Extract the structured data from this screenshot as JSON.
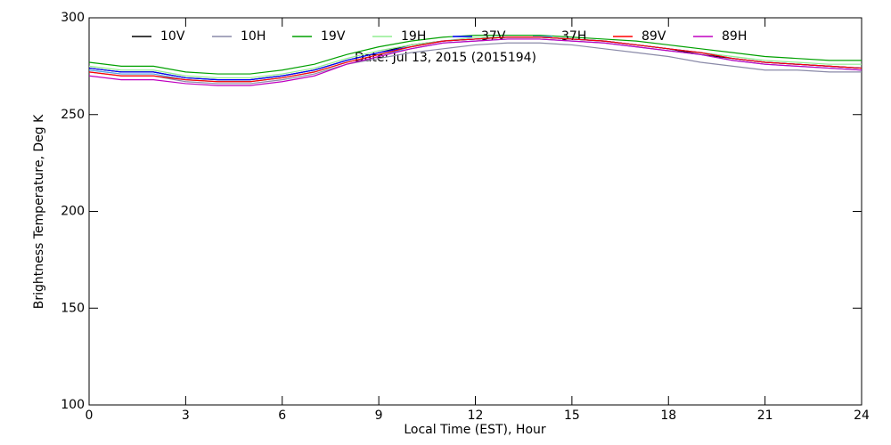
{
  "chart_data": {
    "type": "line",
    "annotation": "Date: Jul 13, 2015 (2015194)",
    "x_label": "Local Time (EST), Hour",
    "y_label": "Brightness Temperature, Deg K",
    "x": [
      0,
      1,
      2,
      3,
      4,
      5,
      6,
      7,
      8,
      9,
      10,
      11,
      12,
      13,
      14,
      15,
      16,
      17,
      18,
      19,
      20,
      21,
      22,
      23,
      24
    ],
    "xlim": [
      0,
      24
    ],
    "xticks": [
      0,
      3,
      6,
      9,
      12,
      15,
      18,
      21,
      24
    ],
    "ylim": [
      100,
      300
    ],
    "yticks": [
      100,
      150,
      200,
      250,
      300
    ],
    "series": [
      {
        "name": "10V",
        "color": "#000000",
        "values": [
          274,
          272,
          272,
          269,
          268,
          268,
          270,
          273,
          278,
          282,
          286,
          288,
          289,
          290,
          290,
          289,
          288,
          286,
          284,
          281,
          279,
          277,
          276,
          275,
          274
        ]
      },
      {
        "name": "10H",
        "color": "#8a8aa8",
        "values": [
          272,
          270,
          270,
          267,
          266,
          266,
          268,
          271,
          276,
          279,
          282,
          284,
          286,
          287,
          287,
          286,
          284,
          282,
          280,
          277,
          275,
          273,
          273,
          272,
          272
        ]
      },
      {
        "name": "19V",
        "color": "#00a000",
        "values": [
          277,
          275,
          275,
          272,
          271,
          271,
          273,
          276,
          281,
          285,
          288,
          290,
          291,
          291,
          291,
          290,
          289,
          288,
          286,
          284,
          282,
          280,
          279,
          278,
          278
        ]
      },
      {
        "name": "19H",
        "color": "#90ee90",
        "values": [
          275,
          273,
          273,
          270,
          269,
          269,
          271,
          274,
          279,
          283,
          286,
          288,
          290,
          290,
          290,
          289,
          288,
          286,
          284,
          282,
          280,
          278,
          277,
          276,
          276
        ]
      },
      {
        "name": "37V",
        "color": "#0000ff",
        "values": [
          274,
          272,
          272,
          269,
          268,
          268,
          270,
          273,
          278,
          282,
          285,
          288,
          289,
          290,
          290,
          289,
          288,
          286,
          284,
          282,
          279,
          277,
          276,
          275,
          274
        ]
      },
      {
        "name": "37H",
        "color": "#4fa3e0",
        "values": [
          273,
          271,
          271,
          268,
          267,
          267,
          269,
          272,
          277,
          281,
          284,
          287,
          288,
          289,
          289,
          288,
          287,
          285,
          283,
          281,
          278,
          276,
          275,
          274,
          273
        ]
      },
      {
        "name": "89V",
        "color": "#ff0000",
        "values": [
          272,
          270,
          270,
          268,
          267,
          267,
          269,
          272,
          277,
          281,
          285,
          288,
          289,
          290,
          290,
          289,
          288,
          286,
          284,
          282,
          279,
          277,
          276,
          275,
          274
        ]
      },
      {
        "name": "89H",
        "color": "#c000c0",
        "values": [
          270,
          268,
          268,
          266,
          265,
          265,
          267,
          270,
          276,
          280,
          284,
          287,
          288,
          289,
          289,
          288,
          287,
          285,
          283,
          281,
          278,
          276,
          275,
          274,
          273
        ]
      }
    ]
  }
}
